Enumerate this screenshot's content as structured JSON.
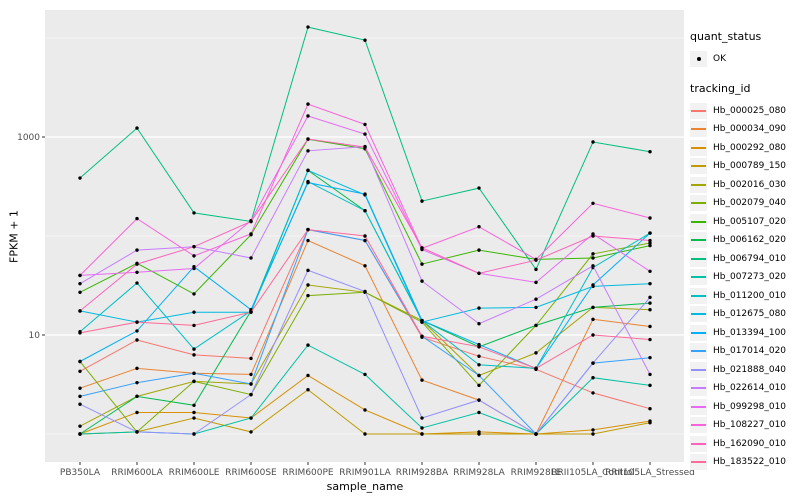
{
  "chart_data": {
    "type": "line",
    "title": "",
    "xlabel": "sample_name",
    "ylabel": "FPKM + 1",
    "y_scale": "log10",
    "ylim_log10": [
      -0.25,
      4.28
    ],
    "grid_on": true,
    "panel_bg": "#EBEBEB",
    "gridline_color": "#FFFFFF",
    "point_color": "#000000",
    "axis_text_color": "#4D4D4D",
    "y_ticks": [
      {
        "label": "1000",
        "value": 1000
      },
      {
        "label": "10",
        "value": 10
      }
    ],
    "grid_major_values": [
      1000,
      10
    ],
    "grid_minor_values": [
      10000,
      100,
      1
    ],
    "categories": [
      "PB350LA",
      "RRIM600LA",
      "RRIM600LE",
      "RRIM600SE",
      "RRIM600PE",
      "RRIM901LA",
      "RRIM928BA",
      "RRIM928LA",
      "RRIM928LE",
      "RRII105LA_Control",
      "RRII105LA_Stressed"
    ],
    "legend": {
      "quant_status_title": "quant_status",
      "quant_status_items": [
        {
          "label": "OK",
          "shape": "point"
        }
      ],
      "tracking_title": "tracking_id"
    },
    "series": [
      {
        "name": "Hb_000025_080",
        "color": "#F8766D",
        "values": [
          4.3,
          8.9,
          6.3,
          5.8,
          116,
          90,
          9.5,
          6.1,
          4.5,
          2.6,
          1.8
        ]
      },
      {
        "name": "Hb_000034_090",
        "color": "#EA8331",
        "values": [
          2.9,
          4.6,
          4.1,
          4.0,
          90,
          50,
          3.5,
          2.2,
          1.0,
          14.4,
          12.2
        ]
      },
      {
        "name": "Hb_000292_080",
        "color": "#D89000",
        "values": [
          1.0,
          1.65,
          1.65,
          1.45,
          3.9,
          1.75,
          1.0,
          1.05,
          1.0,
          1.1,
          1.35
        ]
      },
      {
        "name": "Hb_000789_150",
        "color": "#C09B00",
        "values": [
          1.0,
          1.05,
          1.45,
          1.05,
          2.8,
          1.0,
          1.0,
          1.0,
          1.0,
          1.0,
          1.3
        ]
      },
      {
        "name": "Hb_002016_030",
        "color": "#A3A500",
        "values": [
          1.2,
          2.4,
          3.4,
          3.2,
          32,
          27,
          14,
          3.9,
          6.6,
          19,
          18
        ]
      },
      {
        "name": "Hb_002079_040",
        "color": "#7CAE00",
        "values": [
          5.4,
          1.05,
          3.4,
          2.5,
          25,
          27,
          13.5,
          3.1,
          12.5,
          66,
          85
        ]
      },
      {
        "name": "Hb_005107_020",
        "color": "#39B600",
        "values": [
          27,
          53,
          26,
          103,
          950,
          760,
          52,
          72,
          58,
          60,
          80
        ]
      },
      {
        "name": "Hb_006162_020",
        "color": "#00BB4E",
        "values": [
          1.0,
          2.4,
          1.95,
          17.5,
          460,
          180,
          14,
          7.6,
          12.5,
          19,
          21
        ]
      },
      {
        "name": "Hb_006794_010",
        "color": "#00BF7D",
        "values": [
          385,
          1230,
          171,
          140,
          12900,
          9500,
          225,
          305,
          46,
          890,
          710
        ]
      },
      {
        "name": "Hb_007273_020",
        "color": "#00C1A3",
        "values": [
          1.0,
          1.05,
          1.0,
          1.45,
          7.9,
          4.0,
          1.15,
          1.65,
          1.0,
          3.7,
          3.1
        ]
      },
      {
        "name": "Hb_011200_010",
        "color": "#00BFC4",
        "values": [
          10.8,
          33.5,
          7.2,
          17.5,
          355,
          180,
          14,
          5.0,
          4.6,
          48,
          107
        ]
      },
      {
        "name": "Hb_012675_080",
        "color": "#00BAE0",
        "values": [
          17.5,
          13.5,
          17,
          17,
          460,
          260,
          13.5,
          18.7,
          19,
          31,
          33
        ]
      },
      {
        "name": "Hb_013394_100",
        "color": "#00B0F6",
        "values": [
          5.4,
          11,
          49,
          18,
          346,
          265,
          14,
          8.0,
          4.6,
          32,
          107
        ]
      },
      {
        "name": "Hb_017014_020",
        "color": "#35A2FF",
        "values": [
          2.4,
          3.3,
          4.1,
          3.2,
          116,
          90,
          9.7,
          3.9,
          1.0,
          5.2,
          5.9
        ]
      },
      {
        "name": "Hb_021888_040",
        "color": "#9590FF",
        "values": [
          2.0,
          1.05,
          1.0,
          2.5,
          45,
          27.5,
          1.45,
          2.2,
          1.0,
          5.2,
          24
        ]
      },
      {
        "name": "Hb_022614_010",
        "color": "#C77CFF",
        "values": [
          33,
          72,
          78,
          60,
          725,
          800,
          35,
          13,
          23,
          50,
          4.0
        ]
      },
      {
        "name": "Hb_099298_010",
        "color": "#E76BF3",
        "values": [
          40,
          43,
          47,
          143,
          1630,
          1070,
          73,
          42,
          34,
          105,
          44
        ]
      },
      {
        "name": "Hb_108227_010",
        "color": "#FA62DB",
        "values": [
          40,
          150,
          63,
          105,
          2150,
          1340,
          75,
          124,
          58,
          214,
          152
        ]
      },
      {
        "name": "Hb_162090_010",
        "color": "#FF62BC",
        "values": [
          17.5,
          52,
          78,
          140,
          955,
          790,
          76,
          42,
          57,
          100,
          90
        ]
      },
      {
        "name": "Hb_183522_010",
        "color": "#FF6A98",
        "values": [
          10.5,
          13.5,
          12.5,
          17,
          116,
          100,
          9.7,
          7.6,
          4.6,
          10,
          9
        ]
      }
    ]
  }
}
